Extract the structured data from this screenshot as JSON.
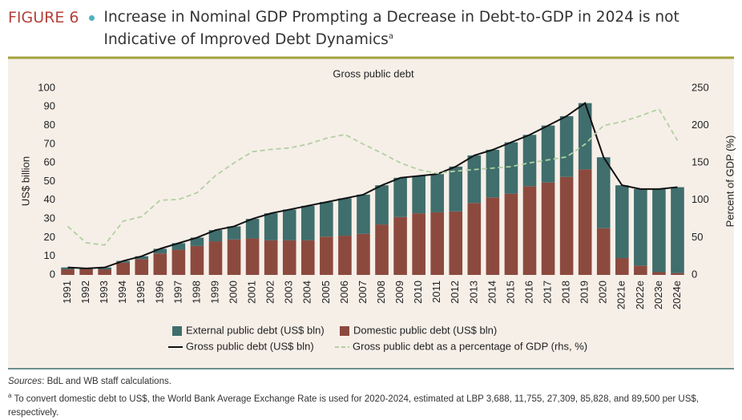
{
  "figure_label": "FIGURE 6",
  "title": "Increase in Nominal GDP Prompting a Decrease in Debt-to-GDP in 2024 is not Indicative of Improved Debt Dynamics",
  "title_note": "a",
  "chart_data": {
    "type": "bar",
    "title": "Gross public debt",
    "y_label": "US$ billion",
    "y2_label": "Percent of GDP (%)",
    "stacked": true,
    "grid": false,
    "categories": [
      "1991",
      "1992",
      "1993",
      "1994",
      "1995",
      "1996",
      "1997",
      "1998",
      "1999",
      "2000",
      "2001",
      "2002",
      "2003",
      "2004",
      "2005",
      "2006",
      "2007",
      "2008",
      "2009",
      "2010",
      "2011",
      "2012",
      "2013",
      "2014",
      "2015",
      "2016",
      "2017",
      "2018",
      "2019",
      "2020",
      "2021e",
      "2022e",
      "2023e",
      "2024e"
    ],
    "series": [
      {
        "name": "External public debt (US$ bln)",
        "type": "bar",
        "color": "#3f6e6d",
        "values": [
          1,
          0.5,
          1,
          1,
          1.5,
          2.5,
          3.5,
          4.5,
          6,
          7,
          10.5,
          14.5,
          16.5,
          18.5,
          18.5,
          20,
          21,
          21,
          21,
          20,
          20.5,
          24,
          25.5,
          25.5,
          27.5,
          27.5,
          30.5,
          32.5,
          35.5,
          38,
          39,
          41,
          44.5,
          46
        ]
      },
      {
        "name": "Domestic public debt (US$ bln)",
        "type": "bar",
        "color": "#8c4a3e",
        "values": [
          3,
          3,
          3,
          6.5,
          8.5,
          11.5,
          13.5,
          15.5,
          18,
          19,
          19.5,
          18.5,
          18.5,
          18.5,
          20.5,
          21,
          22,
          27,
          31,
          33,
          33.5,
          34,
          38.5,
          41.5,
          43.5,
          47.5,
          49.5,
          52.5,
          56.5,
          25,
          9,
          5,
          1.5,
          1
        ]
      },
      {
        "name": "Gross public debt (US$ bln)",
        "type": "line",
        "color": "#111111",
        "values": [
          4,
          3.5,
          4,
          7.5,
          10,
          14,
          17,
          20,
          24,
          26,
          30,
          33,
          35,
          37,
          39,
          41,
          43,
          48,
          52,
          53,
          54,
          58,
          64,
          67,
          71,
          75,
          80,
          85,
          92,
          63,
          48,
          46,
          46,
          47
        ]
      },
      {
        "name": "Gross public debt as a percentage of GDP (rhs, %)",
        "type": "line",
        "axis": "y2",
        "dash": true,
        "color": "#b3cfa2",
        "values": [
          65,
          43,
          40,
          72,
          78,
          100,
          101,
          110,
          133,
          150,
          165,
          168,
          170,
          175,
          183,
          188,
          175,
          163,
          150,
          141,
          136,
          139,
          141,
          143,
          145,
          150,
          154,
          158,
          175,
          200,
          205,
          213,
          222,
          180
        ]
      }
    ],
    "ylim": [
      0,
      100
    ],
    "yticks": [
      0,
      10,
      20,
      30,
      40,
      50,
      60,
      70,
      80,
      90,
      100
    ],
    "y2lim": [
      0,
      250
    ],
    "y2ticks": [
      0,
      50,
      100,
      150,
      200,
      250
    ]
  },
  "sources_label": "Sources",
  "sources": ": BdL and WB staff calculations.",
  "footnote_marker": "a",
  "footnote": " To convert domestic debt to US$, the World Bank Average Exchange Rate is used for 2020-2024, estimated at LBP 3,688, 11,755, 27,309, 85,828, and 89,500 per US$, respectively."
}
